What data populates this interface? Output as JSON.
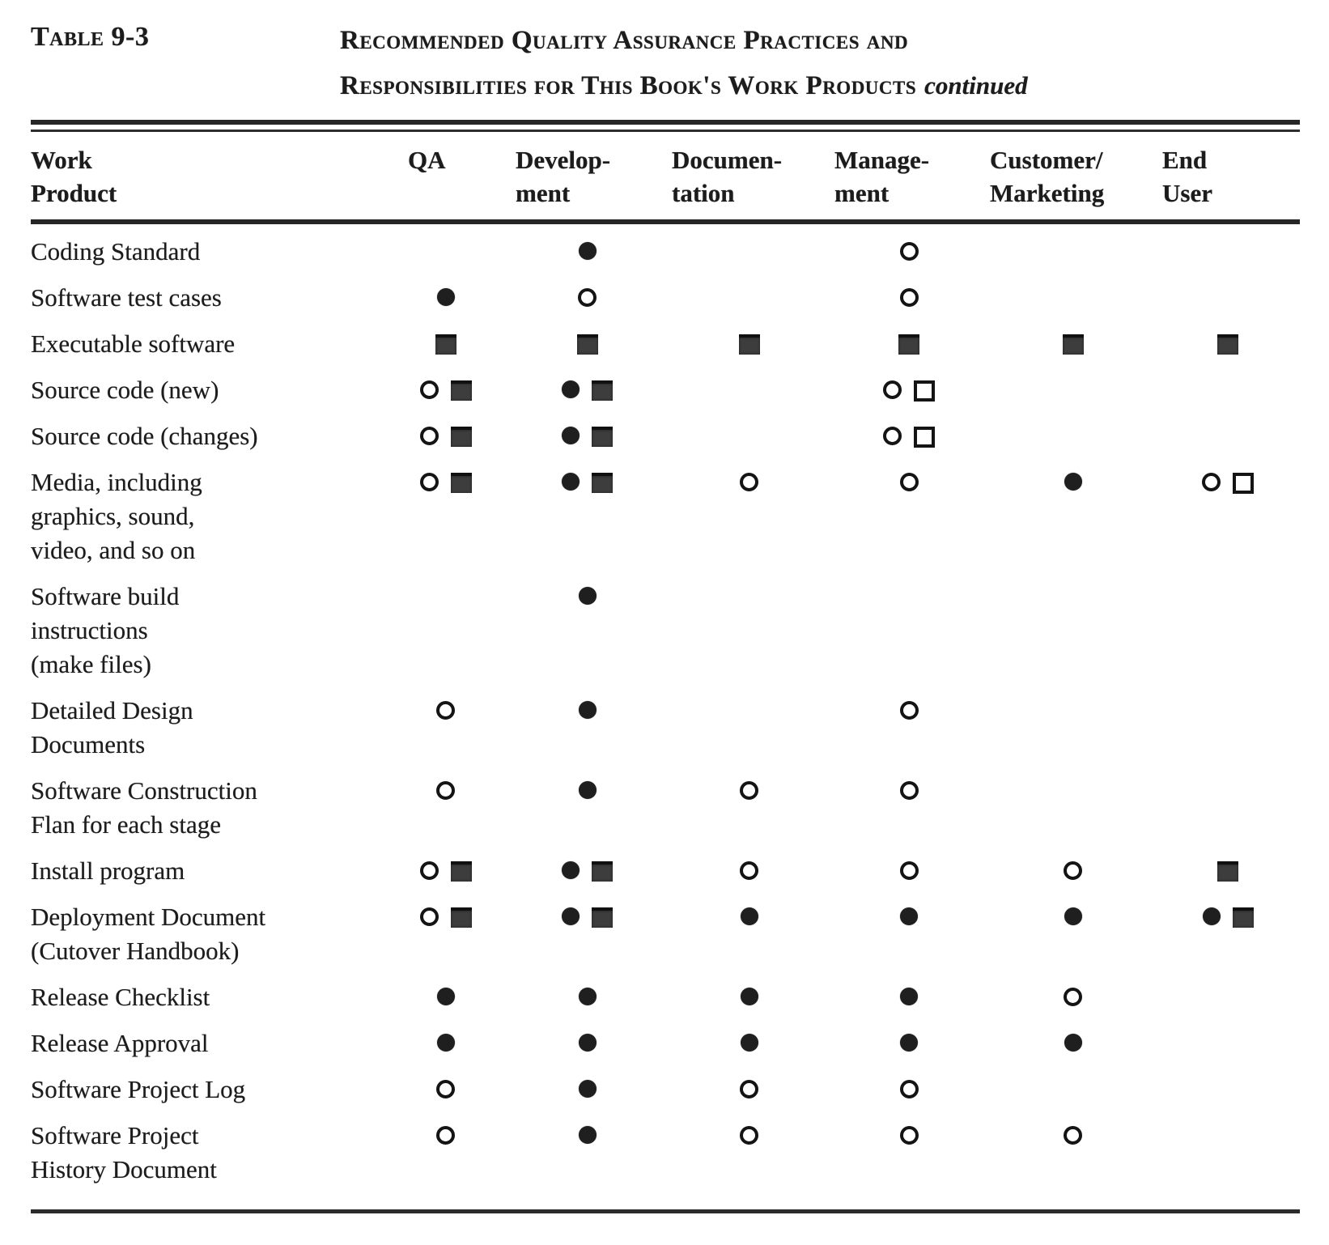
{
  "caption": {
    "label": "Table 9-3",
    "title_line1": "Recommended Quality Assurance Practices and",
    "title_line2": "Responsibilities for This Book's Work Products",
    "continued": "continued"
  },
  "colors": {
    "paper": "#ffffff",
    "ink": "#1c1c1c",
    "square_fill": "#3d3d3d"
  },
  "symbols": {
    "fc": "filled-circle",
    "oc": "open-circle",
    "fs": "filled-square",
    "os": "open-square"
  },
  "columns": [
    {
      "id": "work-product",
      "line1": "Work",
      "line2": "Product"
    },
    {
      "id": "qa",
      "line1": "",
      "line2": "QA"
    },
    {
      "id": "development",
      "line1": "Develop-",
      "line2": "ment"
    },
    {
      "id": "documentation",
      "line1": "Documen-",
      "line2": "tation"
    },
    {
      "id": "management",
      "line1": "Manage-",
      "line2": "ment"
    },
    {
      "id": "customer-marketing",
      "line1": "Customer/",
      "line2": "Marketing"
    },
    {
      "id": "end-user",
      "line1": "End",
      "line2": "User"
    }
  ],
  "rows": [
    {
      "product": [
        "Coding Standard"
      ],
      "cells": [
        [],
        [
          "fc"
        ],
        [],
        [
          "oc"
        ],
        [],
        []
      ]
    },
    {
      "product": [
        "Software test cases"
      ],
      "cells": [
        [
          "fc"
        ],
        [
          "oc"
        ],
        [],
        [
          "oc"
        ],
        [],
        []
      ]
    },
    {
      "product": [
        "Executable software"
      ],
      "cells": [
        [
          "fs"
        ],
        [
          "fs"
        ],
        [
          "fs"
        ],
        [
          "fs"
        ],
        [
          "fs"
        ],
        [
          "fs"
        ]
      ]
    },
    {
      "product": [
        "Source code (new)"
      ],
      "cells": [
        [
          "oc",
          "fs"
        ],
        [
          "fc",
          "fs"
        ],
        [],
        [
          "oc",
          "os"
        ],
        [],
        []
      ]
    },
    {
      "product": [
        "Source code (changes)"
      ],
      "cells": [
        [
          "oc",
          "fs"
        ],
        [
          "fc",
          "fs"
        ],
        [],
        [
          "oc",
          "os"
        ],
        [],
        []
      ]
    },
    {
      "product": [
        "Media, including",
        "graphics, sound,",
        "video, and so on"
      ],
      "cells": [
        [
          "oc",
          "fs"
        ],
        [
          "fc",
          "fs"
        ],
        [
          "oc"
        ],
        [
          "oc"
        ],
        [
          "fc"
        ],
        [
          "oc",
          "os"
        ]
      ]
    },
    {
      "product": [
        "Software  build",
        "instructions",
        "(make files)"
      ],
      "cells": [
        [],
        [
          "fc"
        ],
        [],
        [],
        [],
        []
      ]
    },
    {
      "product": [
        "Detailed Design",
        "Documents"
      ],
      "cells": [
        [
          "oc"
        ],
        [
          "fc"
        ],
        [],
        [
          "oc"
        ],
        [],
        []
      ]
    },
    {
      "product": [
        "Software  Construction",
        "Flan for each stage"
      ],
      "cells": [
        [
          "oc"
        ],
        [
          "fc"
        ],
        [
          "oc"
        ],
        [
          "oc"
        ],
        [],
        []
      ]
    },
    {
      "product": [
        "Install program"
      ],
      "cells": [
        [
          "oc",
          "fs"
        ],
        [
          "fc",
          "fs"
        ],
        [
          "oc"
        ],
        [
          "oc"
        ],
        [
          "oc"
        ],
        [
          "fs"
        ]
      ]
    },
    {
      "product": [
        "Deployment Document",
        "(Cutover  Handbook)"
      ],
      "cells": [
        [
          "oc",
          "fs"
        ],
        [
          "fc",
          "fs"
        ],
        [
          "fc"
        ],
        [
          "fc"
        ],
        [
          "fc"
        ],
        [
          "fc",
          "fs"
        ]
      ]
    },
    {
      "product": [
        "Release  Checklist"
      ],
      "cells": [
        [
          "fc"
        ],
        [
          "fc"
        ],
        [
          "fc"
        ],
        [
          "fc"
        ],
        [
          "oc"
        ],
        []
      ]
    },
    {
      "product": [
        "Release  Approval"
      ],
      "cells": [
        [
          "fc"
        ],
        [
          "fc"
        ],
        [
          "fc"
        ],
        [
          "fc"
        ],
        [
          "fc"
        ],
        []
      ]
    },
    {
      "product": [
        "Software Project Log"
      ],
      "cells": [
        [
          "oc"
        ],
        [
          "fc"
        ],
        [
          "oc"
        ],
        [
          "oc"
        ],
        [],
        []
      ]
    },
    {
      "product": [
        "Software Project",
        "History Document"
      ],
      "cells": [
        [
          "oc"
        ],
        [
          "fc"
        ],
        [
          "oc"
        ],
        [
          "oc"
        ],
        [
          "oc"
        ],
        []
      ]
    }
  ]
}
